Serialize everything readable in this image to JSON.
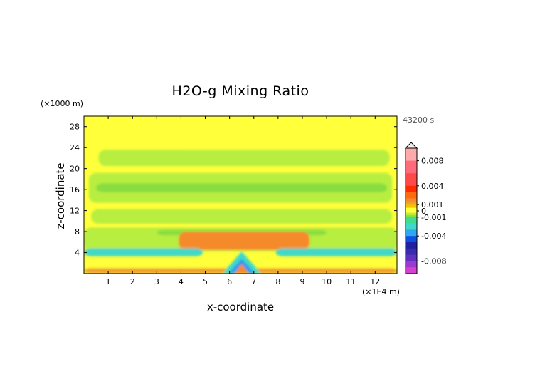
{
  "chart_data": {
    "type": "heatmap",
    "title": "H2O-g Mixing Ratio",
    "xlabel": "x-coordinate",
    "ylabel": "z-coordinate",
    "x_unit": "(×1E4 m)",
    "y_unit": "(×1000 m)",
    "time_label": "43200 s",
    "xlim": [
      0,
      12.9
    ],
    "ylim": [
      0,
      30
    ],
    "x_ticks": [
      "1",
      "2",
      "3",
      "4",
      "5",
      "6",
      "7",
      "8",
      "9",
      "10",
      "11",
      "12"
    ],
    "y_ticks": [
      "4",
      "8",
      "12",
      "16",
      "20",
      "24",
      "28"
    ],
    "colorbar": {
      "range": [
        -0.01,
        0.01
      ],
      "tick_labels": [
        "0.008",
        "0.004",
        "0.001",
        "0",
        "-0.001",
        "-0.004",
        "-0.008"
      ],
      "tick_values": [
        0.008,
        0.004,
        0.001,
        0,
        -0.001,
        -0.004,
        -0.008
      ],
      "colors": {
        "0.010": "#ffaaaa",
        "0.008": "#ff6b7a",
        "0.006": "#ff4a4a",
        "0.004": "#ff2a00",
        "0.003": "#ff6a10",
        "0.002": "#f58a2a",
        "0.0015": "#f0a030",
        "0.001": "#f5c000",
        "0.0005": "#ffff3a",
        "0": "#ffff3a",
        "-0.0003": "#b8ee40",
        "-0.0007": "#88dd40",
        "-0.001": "#40dd90",
        "-0.002": "#40d8c8",
        "-0.003": "#30a8f0",
        "-0.004": "#1050e0",
        "-0.005": "#2020a0",
        "-0.006": "#3a2ab0",
        "-0.007": "#6030c0",
        "-0.008": "#9b3ad0",
        "-0.009": "#d640d0",
        "-0.010": "#ff40b0"
      }
    },
    "field_colors": {
      "background": "#ffff3a",
      "light_green": "#b8ee40",
      "green": "#88dd40",
      "cyan": "#40d8c8",
      "blue": "#3098f0",
      "orange": "#f58a2a",
      "light_orange": "#f0a030"
    },
    "regions": [
      {
        "level": "light_green",
        "x": [
          0.6,
          12.6
        ],
        "y": [
          20.5,
          23.6
        ]
      },
      {
        "level": "light_green",
        "x": [
          0.2,
          12.7
        ],
        "y": [
          13.5,
          19.2
        ]
      },
      {
        "level": "light_green",
        "x": [
          0.3,
          12.7
        ],
        "y": [
          9.5,
          12.3
        ]
      },
      {
        "level": "light_green",
        "x": [
          0,
          12.9
        ],
        "y": [
          4.2,
          8.8
        ]
      },
      {
        "level": "green",
        "x": [
          0.5,
          12.5
        ],
        "y": [
          15.5,
          17.2
        ]
      },
      {
        "level": "green",
        "x": [
          3.0,
          10.0
        ],
        "y": [
          7.3,
          8.3
        ]
      },
      {
        "level": "orange",
        "x": [
          3.9,
          9.3
        ],
        "y": [
          4.5,
          8.0
        ]
      },
      {
        "level": "cyan",
        "x": [
          0,
          4.9
        ],
        "y": [
          3.3,
          4.8
        ]
      },
      {
        "level": "cyan",
        "x": [
          7.9,
          12.9
        ],
        "y": [
          3.3,
          4.8
        ]
      },
      {
        "level": "light_orange",
        "x": [
          0,
          12.9
        ],
        "y": [
          0,
          1.0
        ]
      }
    ]
  }
}
